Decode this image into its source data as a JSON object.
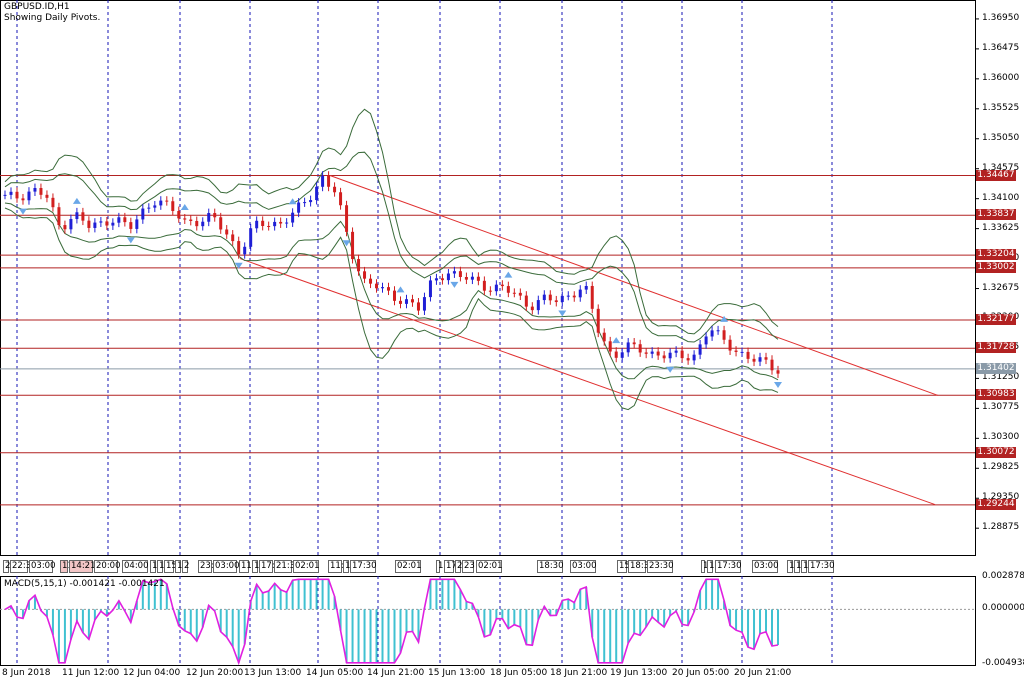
{
  "header": {
    "symbol": "GBPUSD.ID,H1",
    "subtitle": "Showing Daily Pivots."
  },
  "indicator": {
    "label": "MACD(5,15,1) -0.001421 -0.001421"
  },
  "colors": {
    "bull": "#1f1fd6",
    "bear": "#d21f1f",
    "level": "#b22222",
    "band": "#3a6b3a",
    "macd_hist": "#3fc1d1",
    "macd_line": "#e020e0",
    "grid": "#1414b4"
  },
  "chart_data": {
    "type": "candlestick",
    "symbol": "GBPUSD.ID",
    "timeframe": "H1",
    "y_ticks": [
      "1.36950",
      "1.36475",
      "1.36000",
      "1.35525",
      "1.35050",
      "1.34575",
      "1.34100",
      "1.33625",
      "1.33150",
      "1.32675",
      "1.32200",
      "1.31725",
      "1.31250",
      "1.30775",
      "1.30300",
      "1.29825",
      "1.29350",
      "1.28875"
    ],
    "ylim": [
      1.2845,
      1.3725
    ],
    "x_labels": [
      "8 Jun 2018",
      "11 Jun 12:00",
      "12 Jun 04:00",
      "12 Jun 20:00",
      "13 Jun 13:00",
      "14 Jun 05:00",
      "14 Jun 21:00",
      "15 Jun 13:00",
      "18 Jun 05:00",
      "18 Jun 21:00",
      "19 Jun 13:00",
      "20 Jun 05:00",
      "20 Jun 21:00"
    ],
    "pivot_levels": [
      {
        "label": "1.34467",
        "value": 1.34467
      },
      {
        "label": "1.33837",
        "value": 1.33837
      },
      {
        "label": "1.33204",
        "value": 1.33204
      },
      {
        "label": "1.33002",
        "value": 1.33002
      },
      {
        "label": "1.32177",
        "value": 1.32177
      },
      {
        "label": "1.31728",
        "value": 1.31728
      },
      {
        "label": "1.30983",
        "value": 1.30983
      },
      {
        "label": "1.30072",
        "value": 1.30072
      },
      {
        "label": "1.29244",
        "value": 1.29244
      }
    ],
    "current_price": {
      "label": "1.31402",
      "value": 1.31402
    },
    "close_path": [
      1.3412,
      1.3413,
      1.3425,
      1.3413,
      1.3362,
      1.3388,
      1.3365,
      1.337,
      1.3382,
      1.336,
      1.339,
      1.3412,
      1.3392,
      1.3374,
      1.3375,
      1.338,
      1.3356,
      1.3325,
      1.3365,
      1.3371,
      1.3372,
      1.3388,
      1.341,
      1.3445,
      1.3418,
      1.333,
      1.3281,
      1.327,
      1.3253,
      1.3251,
      1.3234,
      1.3281,
      1.3295,
      1.3285,
      1.328,
      1.327,
      1.3267,
      1.3258,
      1.324,
      1.325,
      1.3248,
      1.326,
      1.327,
      1.32,
      1.316,
      1.3175,
      1.317,
      1.3165,
      1.3162,
      1.3158,
      1.3163,
      1.3205,
      1.3185,
      1.317,
      1.3155,
      1.315,
      1.314
    ],
    "channel": {
      "upper": [
        {
          "x": "14 Jun 05:00",
          "y": 1.34467
        },
        {
          "x": "end",
          "y": 1.3098
        }
      ],
      "lower": [
        {
          "x": "13 Jun 13:00",
          "y": 1.3315
        },
        {
          "x": "end",
          "y": 1.2925
        }
      ]
    },
    "macd": {
      "params": "5,15,1",
      "value": -0.001421,
      "signal": -0.001421,
      "y_ticks": [
        "0.002878",
        "0.000000",
        "-0.004938"
      ],
      "ylim": [
        -0.005,
        0.003
      ]
    }
  },
  "time_tags": [
    {
      "text": "2",
      "x": 3,
      "w": 6
    },
    {
      "text": "22:3",
      "x": 10,
      "w": 18
    },
    {
      "text": "03:00",
      "x": 29,
      "w": 24
    },
    {
      "text": "11",
      "x": 60,
      "w": 8,
      "red": true
    },
    {
      "text": "14:21",
      "x": 69,
      "w": 24,
      "red": true
    },
    {
      "text": "20:00",
      "x": 94,
      "w": 24
    },
    {
      "text": "04:00",
      "x": 122,
      "w": 26
    },
    {
      "text": "1",
      "x": 150,
      "w": 6
    },
    {
      "text": "1",
      "x": 157,
      "w": 6
    },
    {
      "text": "15",
      "x": 164,
      "w": 10
    },
    {
      "text": "1",
      "x": 175,
      "w": 6
    },
    {
      "text": "2",
      "x": 182,
      "w": 6
    },
    {
      "text": "23:",
      "x": 198,
      "w": 14
    },
    {
      "text": "03:00",
      "x": 213,
      "w": 24
    },
    {
      "text": "11",
      "x": 239,
      "w": 10
    },
    {
      "text": "1",
      "x": 252,
      "w": 6
    },
    {
      "text": "17:",
      "x": 259,
      "w": 14
    },
    {
      "text": "21:3",
      "x": 274,
      "w": 18
    },
    {
      "text": "02:01",
      "x": 293,
      "w": 26
    },
    {
      "text": "11:",
      "x": 328,
      "w": 14
    },
    {
      "text": "1",
      "x": 343,
      "w": 6
    },
    {
      "text": "17:30",
      "x": 350,
      "w": 26
    },
    {
      "text": "02:01",
      "x": 395,
      "w": 26
    },
    {
      "text": "1",
      "x": 436,
      "w": 4
    },
    {
      "text": "17",
      "x": 444,
      "w": 10
    },
    {
      "text": "2",
      "x": 455,
      "w": 6
    },
    {
      "text": "23",
      "x": 462,
      "w": 12
    },
    {
      "text": "02:01",
      "x": 476,
      "w": 26
    },
    {
      "text": "18:30",
      "x": 537,
      "w": 26
    },
    {
      "text": "03:00",
      "x": 570,
      "w": 26
    },
    {
      "text": "15",
      "x": 617,
      "w": 10
    },
    {
      "text": "18:3",
      "x": 628,
      "w": 18
    },
    {
      "text": "23:30",
      "x": 647,
      "w": 26
    },
    {
      "text": "1",
      "x": 701,
      "w": 4
    },
    {
      "text": "1",
      "x": 707,
      "w": 6
    },
    {
      "text": "17:30",
      "x": 715,
      "w": 26
    },
    {
      "text": "03:00",
      "x": 752,
      "w": 26
    },
    {
      "text": "1",
      "x": 787,
      "w": 6
    },
    {
      "text": "1",
      "x": 794,
      "w": 6
    },
    {
      "text": "1",
      "x": 801,
      "w": 6
    },
    {
      "text": "17:30",
      "x": 808,
      "w": 26
    }
  ]
}
